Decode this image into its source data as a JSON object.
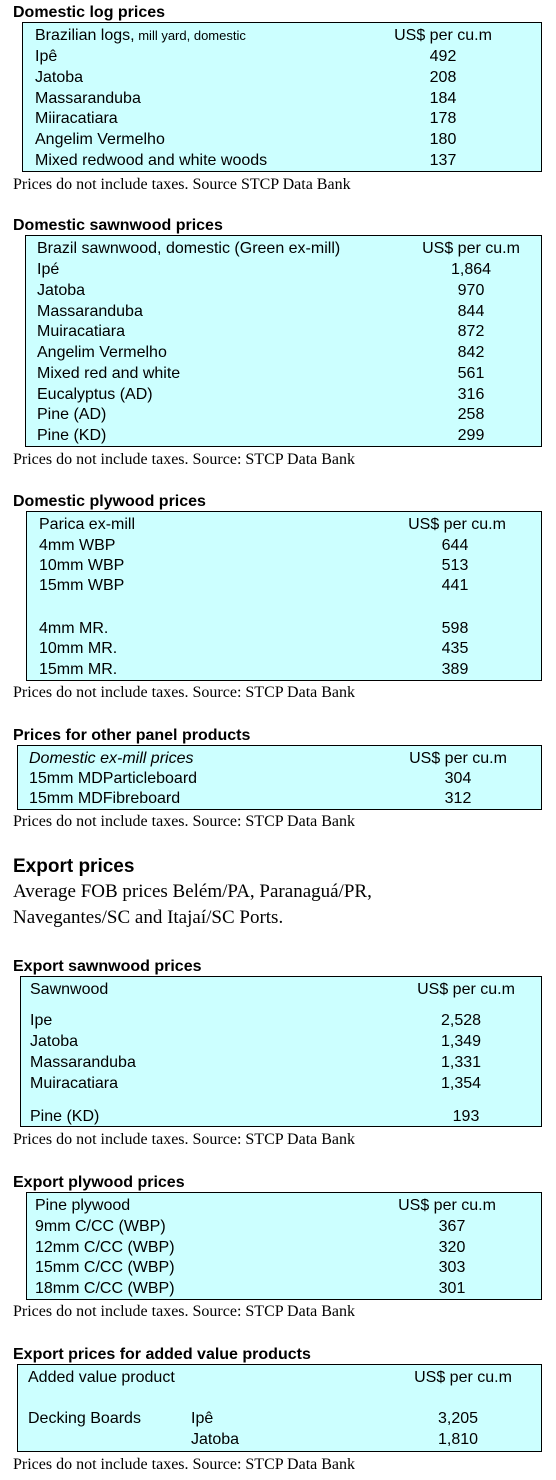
{
  "sections": [
    {
      "id": "domestic-log",
      "title": "Domestic log prices",
      "header_label": "Brazilian logs,",
      "header_label_small": " mill yard, domestic",
      "header_value": "US$ per cu.m",
      "rows": [
        {
          "label": "Ipê",
          "value": "492"
        },
        {
          "label": "Jatoba",
          "value": "208"
        },
        {
          "label": "Massaranduba",
          "value": "184"
        },
        {
          "label": "Miiracatiara",
          "value": "178"
        },
        {
          "label": "Angelim Vermelho",
          "value": "180"
        },
        {
          "label": "Mixed redwood and white woods",
          "value": "137"
        }
      ],
      "note": "Prices do not include taxes. Source STCP Data Bank"
    },
    {
      "id": "domestic-sawnwood",
      "title": "Domestic sawnwood prices",
      "header_label": "Brazil sawnwood, domestic (Green ex-mill)",
      "header_value": "US$ per cu.m",
      "rows": [
        {
          "label": "Ipé",
          "value": "1,864"
        },
        {
          "label": "Jatoba",
          "value": "970"
        },
        {
          "label": "Massaranduba",
          "value": "844"
        },
        {
          "label": "Muiracatiara",
          "value": "872"
        },
        {
          "label": "Angelim Vermelho",
          "value": "842"
        },
        {
          "label": "Mixed red and white",
          "value": "561"
        },
        {
          "label": "Eucalyptus (AD)",
          "value": "316"
        },
        {
          "label": "Pine (AD)",
          "value": "258"
        },
        {
          "label": "Pine (KD)",
          "value": "299"
        }
      ],
      "note": "Prices do not include taxes. Source: STCP Data Bank"
    },
    {
      "id": "domestic-plywood",
      "title": "Domestic plywood prices",
      "header_label": "Parica ex-mill",
      "header_value": "US$ per cu.m",
      "rows": [
        {
          "label": "4mm WBP",
          "value": "644"
        },
        {
          "label": "10mm WBP",
          "value": "513"
        },
        {
          "label": "15mm WBP",
          "value": "441"
        },
        {
          "label": "4mm MR.",
          "value": "598"
        },
        {
          "label": "10mm MR.",
          "value": "435"
        },
        {
          "label": "15mm MR.",
          "value": "389"
        }
      ],
      "note": "Prices do not include taxes. Source: STCP Data Bank"
    },
    {
      "id": "other-panel",
      "title": "Prices for other panel products",
      "header_label": "Domestic ex-mill prices",
      "header_value": "US$ per cu.m",
      "rows": [
        {
          "label": "15mm MDParticleboard",
          "value": "304"
        },
        {
          "label": "15mm MDFibreboard",
          "value": "312"
        }
      ],
      "note": "Prices do not include taxes. Source: STCP Data Bank"
    },
    {
      "id": "export-sawnwood",
      "title": "Export sawnwood prices",
      "header_label": "Sawnwood",
      "header_value": "US$ per cu.m",
      "rows": [
        {
          "label": "Ipe",
          "value": "2,528"
        },
        {
          "label": "Jatoba",
          "value": "1,349"
        },
        {
          "label": "Massaranduba",
          "value": "1,331"
        },
        {
          "label": "Muiracatiara",
          "value": "1,354"
        },
        {
          "label": "Pine (KD)",
          "value": "193"
        }
      ],
      "note": "Prices do not include taxes. Source: STCP Data Bank"
    },
    {
      "id": "export-plywood",
      "title": "Export plywood prices",
      "header_label": "Pine plywood",
      "header_value": "US$ per cu.m",
      "rows": [
        {
          "label": "9mm C/CC (WBP)",
          "value": "367"
        },
        {
          "label": "12mm C/CC (WBP)",
          "value": "320"
        },
        {
          "label": "15mm C/CC (WBP)",
          "value": "303"
        },
        {
          "label": "18mm C/CC (WBP)",
          "value": "301"
        }
      ],
      "note": "Prices do not include taxes. Source: STCP Data Bank"
    },
    {
      "id": "export-added-value",
      "title": "Export prices for added value products",
      "header_label": "Added value product",
      "header_value": "US$ per cu.m",
      "rows": [
        {
          "label": "Decking Boards",
          "sub": "Ipê",
          "value": "3,205"
        },
        {
          "label": "",
          "sub": "Jatoba",
          "value": "1,810"
        }
      ],
      "note": "Prices do not include taxes. Source: STCP Data Bank"
    }
  ],
  "export_heading": {
    "title": "Export prices",
    "intro_line1": "Average FOB prices Belém/PA, Paranaguá/PR,",
    "intro_line2": "Navegantes/SC and Itajaí/SC Ports."
  }
}
